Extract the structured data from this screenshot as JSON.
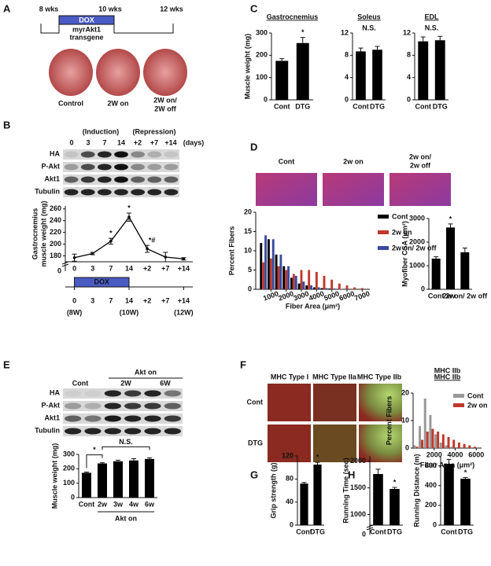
{
  "panels": {
    "A": {
      "label": "A",
      "timeline": [
        "8 wks",
        "10 wks",
        "12 wks"
      ],
      "dox": "DOX",
      "transgene": [
        "myrAkt1",
        "transgene"
      ],
      "images": [
        "Control",
        "2W on"
      ],
      "image3": [
        "2W on/",
        "2W off"
      ]
    },
    "B": {
      "label": "B",
      "phases": [
        "(Induction)",
        "(Repression)"
      ],
      "lanes": [
        "0",
        "3",
        "7",
        "14",
        "+2",
        "+7",
        "+14"
      ],
      "unit": "(days)",
      "proteins": [
        "HA",
        "P-Akt",
        "Akt1",
        "Tubulin"
      ]
    },
    "C": {
      "label": "C"
    },
    "D": {
      "label": "D",
      "images": [
        "Cont",
        "2w on"
      ],
      "image3": [
        "2w on/",
        "2w off"
      ]
    },
    "E": {
      "label": "E",
      "lanes": [
        "Cont",
        "Akt on",
        "2W",
        "6W"
      ],
      "proteins": [
        "HA",
        "P-Akt",
        "Akt1",
        "Tubulin"
      ]
    },
    "F": {
      "label": "F",
      "columns": [
        "MHC Type I",
        "MHC Type IIa",
        "MHC Type IIb"
      ],
      "rows": [
        "Cont",
        "DTG"
      ]
    },
    "G": {
      "label": "G"
    },
    "H": {
      "label": "H"
    }
  },
  "chart_data": [
    {
      "type": "bar",
      "title": "Gastrocnemius",
      "ylabel": "Muscle weight (mg)",
      "categories": [
        "Cont",
        "DTG"
      ],
      "values": [
        175,
        255
      ],
      "errors": [
        10,
        25
      ],
      "significance": [
        null,
        "*"
      ],
      "color": "#000000",
      "ylim": [
        0,
        300
      ],
      "yticks": [
        0,
        100,
        200,
        300
      ]
    },
    {
      "type": "bar",
      "title": "Soleus",
      "annotation": "N.S.",
      "categories": [
        "Cont",
        "DTG"
      ],
      "values": [
        8.7,
        9.0
      ],
      "errors": [
        0.6,
        0.6
      ],
      "color": "#000000",
      "ylim": [
        0,
        12
      ],
      "yticks": [
        0,
        4,
        8,
        12
      ]
    },
    {
      "type": "bar",
      "title": "EDL",
      "annotation": "N.S.",
      "categories": [
        "Cont",
        "DTG"
      ],
      "values": [
        10.5,
        10.7
      ],
      "errors": [
        0.8,
        0.7
      ],
      "color": "#000000",
      "ylim": [
        0,
        12
      ],
      "yticks": [
        0,
        4,
        8,
        12
      ]
    },
    {
      "type": "line",
      "ylabel": [
        "Gastrocnemius",
        "muscle weight (mg)"
      ],
      "categories": [
        "0",
        "3",
        "7",
        "14",
        "+2",
        "+7",
        "+14"
      ],
      "values": [
        177,
        184,
        205,
        246,
        192,
        178,
        175
      ],
      "errors": [
        6,
        2,
        5,
        7,
        6,
        8,
        2
      ],
      "significance": [
        null,
        null,
        "*",
        "*",
        "*#",
        null,
        null
      ],
      "color": "#000000",
      "ylim": [
        170,
        265
      ],
      "yticks": [
        180,
        200,
        220,
        240,
        260
      ],
      "break_label": "0",
      "dox_label": "DOX",
      "period_labels": [
        "(8W)",
        "(10W)",
        "(12W)"
      ]
    },
    {
      "type": "histogram",
      "ylabel": "Percent Fibers",
      "xlabel": "Fiber Area (μm²)",
      "x": [
        500,
        1000,
        1500,
        2000,
        2500,
        3000,
        3500,
        4000,
        4500,
        5000,
        5500,
        6000,
        6500,
        7000
      ],
      "series": [
        {
          "name": "Cont",
          "color": "#000000",
          "values": [
            12,
            13,
            9,
            6,
            3,
            1.5,
            1,
            0.5,
            0.3,
            0.2,
            0.1,
            0.1,
            0,
            0
          ]
        },
        {
          "name": "2w on",
          "color": "#c0392b",
          "values": [
            7,
            8,
            6,
            5,
            4,
            5,
            5,
            4.5,
            3.5,
            2.5,
            1.5,
            1,
            0.5,
            0.3
          ]
        },
        {
          "name": "2w on/ 2w off",
          "color": "#3a4aa0",
          "values": [
            14,
            13,
            9,
            6,
            3.5,
            2,
            1,
            0.5,
            0.3,
            0.2,
            0.1,
            0,
            0,
            0
          ]
        }
      ],
      "xlim": [
        0,
        7500
      ],
      "xticks": [
        1000,
        2000,
        3000,
        4000,
        5000,
        6000,
        7000
      ],
      "ylim": [
        0,
        20
      ],
      "yticks": [
        0,
        5,
        10,
        15,
        20
      ]
    },
    {
      "type": "bar",
      "ylabel": "Myofiber CSA (μm²)",
      "categories": [
        "Cont",
        "2w",
        "2w on/ 2w off"
      ],
      "values": [
        1300,
        2620,
        1570
      ],
      "errors": [
        80,
        150,
        180
      ],
      "significance": [
        null,
        "*",
        null
      ],
      "color": "#000000",
      "ylim": [
        0,
        3000
      ],
      "yticks": [
        0,
        1000,
        2000,
        3000
      ]
    },
    {
      "type": "bar",
      "ylabel": "Muscle weight (mg)",
      "categories": [
        "Cont",
        "2w",
        "3w",
        "4w",
        "6w"
      ],
      "values": [
        172,
        237,
        252,
        258,
        268
      ],
      "errors": [
        5,
        5,
        8,
        12,
        8
      ],
      "annotations": [
        "*",
        "N.S."
      ],
      "group_label": "Akt on",
      "color": "#000000",
      "ylim": [
        0,
        300
      ],
      "yticks": [
        0,
        100,
        200,
        300
      ]
    },
    {
      "type": "histogram",
      "title": "MHC IIb",
      "ylabel": "Percent Fibers",
      "xlabel": "Fiber Area (μm²)",
      "x": [
        250,
        750,
        1250,
        1750,
        2250,
        2750,
        3250,
        3750,
        4250,
        4750,
        5250,
        5750
      ],
      "series": [
        {
          "name": "Cont",
          "color": "#999999",
          "values": [
            1,
            8,
            18,
            12,
            5,
            2,
            1,
            0.5,
            0,
            0,
            0,
            0
          ]
        },
        {
          "name": "2w on",
          "color": "#c0392b",
          "values": [
            0.5,
            3,
            6,
            7,
            6,
            5,
            4,
            3,
            2,
            1.5,
            1,
            0.5
          ]
        }
      ],
      "xlim": [
        0,
        6500
      ],
      "xticks": [
        2000,
        4000,
        6000
      ],
      "ylim": [
        0,
        20
      ],
      "yticks": [
        0,
        10,
        20
      ]
    },
    {
      "type": "bar",
      "ylabel": "Grip strength (g)",
      "categories": [
        "Cont",
        "DTG"
      ],
      "values": [
        72,
        105
      ],
      "errors": [
        2,
        4
      ],
      "significance": [
        null,
        "*"
      ],
      "color": "#000000",
      "ylim": [
        0,
        120
      ],
      "yticks": [
        0,
        40,
        80,
        120
      ]
    },
    {
      "type": "bar",
      "ylabel": "Running Time (sec)",
      "categories": [
        "Cont",
        "DTG"
      ],
      "values": [
        1760,
        1480
      ],
      "errors": [
        90,
        30
      ],
      "significance": [
        null,
        "*"
      ],
      "color": "#000000",
      "ylim": [
        800,
        2100
      ],
      "yticks": [
        1000,
        1500,
        2000
      ],
      "break_label": "0"
    },
    {
      "type": "bar",
      "ylabel": "Running Distance (m)",
      "categories": [
        "Cont",
        "DTG"
      ],
      "values": [
        620,
        470
      ],
      "errors": [
        45,
        12
      ],
      "significance": [
        null,
        "*"
      ],
      "color": "#000000",
      "ylim": [
        0,
        700
      ],
      "yticks": [
        0,
        200,
        400,
        600
      ]
    }
  ]
}
